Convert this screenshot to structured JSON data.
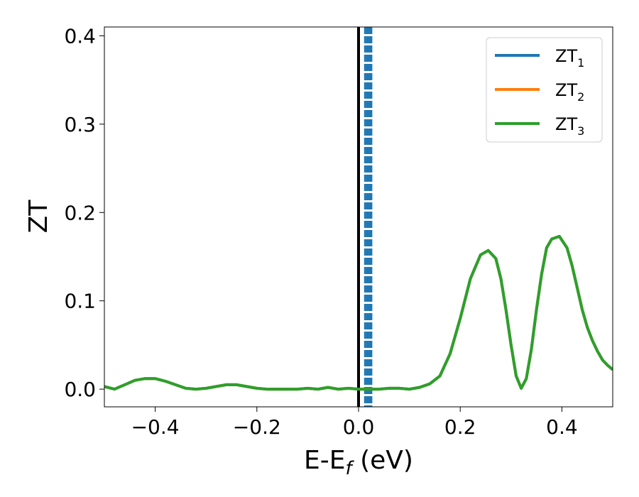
{
  "chart_data": {
    "type": "line",
    "xlabel": "E-E",
    "xlabel_sub": "f",
    "xlabel_unit": " (eV)",
    "ylabel": "ZT",
    "xlim": [
      -0.5,
      0.5
    ],
    "ylim": [
      -0.02,
      0.41
    ],
    "xticks": [
      -0.4,
      -0.2,
      0.0,
      0.2,
      0.4
    ],
    "xtick_labels": [
      "−0.4",
      "−0.2",
      "0.0",
      "0.2",
      "0.4"
    ],
    "yticks": [
      0.0,
      0.1,
      0.2,
      0.3,
      0.4
    ],
    "ytick_labels": [
      "0.0",
      "0.1",
      "0.2",
      "0.3",
      "0.4"
    ],
    "grid": false,
    "legend_position": "top-right",
    "series": [
      {
        "name": "ZT",
        "sub": "1",
        "color": "#1f77b4"
      },
      {
        "name": "ZT",
        "sub": "2",
        "color": "#ff7f0e"
      },
      {
        "name": "ZT",
        "sub": "3",
        "color": "#2ca02c"
      }
    ],
    "x": [
      -0.5,
      -0.48,
      -0.46,
      -0.44,
      -0.42,
      -0.4,
      -0.38,
      -0.36,
      -0.34,
      -0.32,
      -0.3,
      -0.28,
      -0.26,
      -0.24,
      -0.22,
      -0.2,
      -0.18,
      -0.16,
      -0.14,
      -0.12,
      -0.1,
      -0.08,
      -0.06,
      -0.04,
      -0.02,
      0.0,
      0.02,
      0.04,
      0.06,
      0.08,
      0.1,
      0.12,
      0.14,
      0.16,
      0.18,
      0.2,
      0.22,
      0.24,
      0.255,
      0.27,
      0.28,
      0.29,
      0.3,
      0.31,
      0.32,
      0.33,
      0.34,
      0.35,
      0.36,
      0.37,
      0.38,
      0.395,
      0.41,
      0.42,
      0.43,
      0.44,
      0.45,
      0.46,
      0.47,
      0.48,
      0.49,
      0.5
    ],
    "y": [
      0.003,
      0.0,
      0.005,
      0.01,
      0.012,
      0.012,
      0.009,
      0.005,
      0.001,
      0.0,
      0.001,
      0.003,
      0.005,
      0.005,
      0.003,
      0.001,
      0.0,
      0.0,
      0.0,
      0.0,
      0.001,
      0.0,
      0.002,
      0.0,
      0.001,
      0.0,
      0.0,
      0.0,
      0.001,
      0.001,
      0.0,
      0.002,
      0.006,
      0.015,
      0.04,
      0.08,
      0.125,
      0.152,
      0.157,
      0.148,
      0.125,
      0.09,
      0.05,
      0.015,
      0.001,
      0.012,
      0.045,
      0.09,
      0.13,
      0.16,
      0.17,
      0.173,
      0.16,
      0.14,
      0.115,
      0.09,
      0.07,
      0.055,
      0.043,
      0.033,
      0.027,
      0.022
    ],
    "vertical_lines": [
      {
        "x": 0.0,
        "style": "solid",
        "color": "#000000"
      },
      {
        "x": 0.013,
        "style": "dashed",
        "color": "#1f77b4"
      },
      {
        "x": 0.017,
        "style": "dashed",
        "color": "#1f77b4"
      },
      {
        "x": 0.021,
        "style": "dashed",
        "color": "#1f77b4"
      },
      {
        "x": 0.025,
        "style": "dashed",
        "color": "#1f77b4"
      }
    ]
  }
}
